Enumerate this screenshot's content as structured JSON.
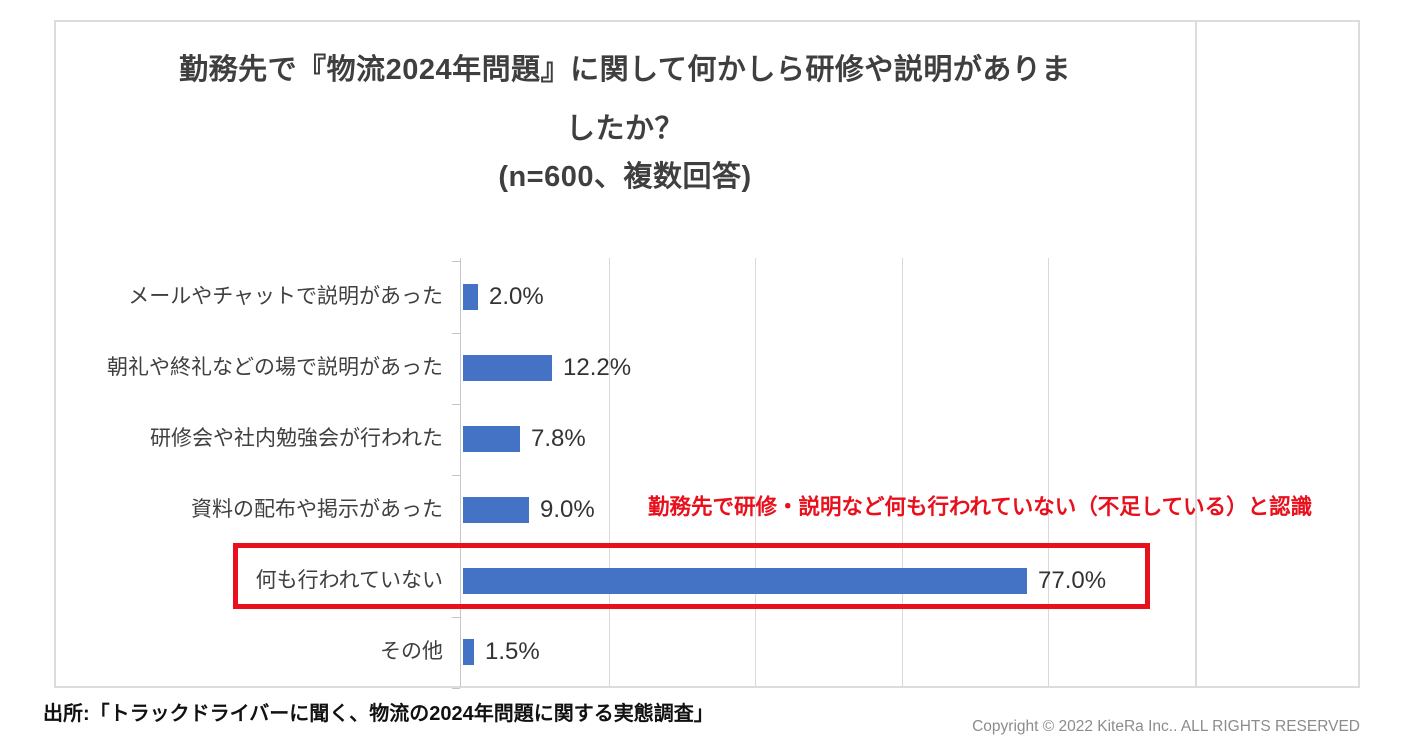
{
  "chart_data": {
    "type": "bar",
    "orientation": "horizontal",
    "title_lines": [
      "勤務先で『物流2024年問題』に関して何かしら研修や説明がありま",
      "したか？",
      "(n=600、複数回答)"
    ],
    "categories": [
      "メールやチャットで説明があった",
      "朝礼や終礼などの場で説明があった",
      "研修会や社内勉強会が行われた",
      "資料の配布や掲示があった",
      "何も行われていない",
      "その他"
    ],
    "values": [
      2.0,
      12.2,
      7.8,
      9.0,
      77.0,
      1.5
    ],
    "value_labels": [
      "2.0%",
      "12.2%",
      "7.8%",
      "9.0%",
      "77.0%",
      "1.5%"
    ],
    "xlim": [
      0,
      100
    ],
    "gridline_interval_pct": 20,
    "grid_on": true,
    "bar_color": "#4472c4",
    "highlight_index": 4,
    "highlight_color": "#e8101c",
    "annotation": "勤務先で研修・説明など何も行われていない（不足している）と認識"
  },
  "footer": {
    "source": "出所:「トラックドライバーに聞く、物流の2024年問題に関する実態調査」",
    "copyright": "Copyright © 2022 KiteRa Inc.. ALL RIGHTS RESERVED"
  }
}
